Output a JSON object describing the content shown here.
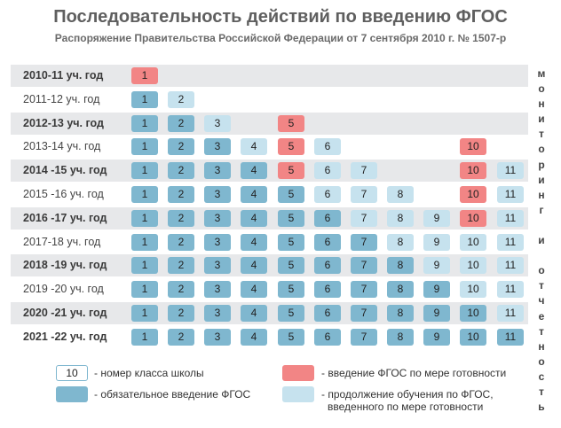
{
  "title": "Последовательность действий по введению ФГОС",
  "subtitle": "Распоряжение Правительства Российской Федерации от 7 сентября 2010 г. № 1507-р",
  "side_text": "мониторинг и отчетность",
  "colors": {
    "mandatory": "#7fb7cf",
    "introduction": "#f28585",
    "continuation": "#c6e2ee",
    "row_shade": "#e7e8ea"
  },
  "rows": [
    {
      "label": "2010-11 уч. год",
      "shaded": true,
      "bold": true,
      "cells": [
        {
          "n": "1",
          "t": "i"
        }
      ]
    },
    {
      "label": "2011-12 уч. год",
      "shaded": false,
      "bold": false,
      "cells": [
        {
          "n": "1",
          "t": "m"
        },
        {
          "n": "2",
          "t": "c"
        }
      ]
    },
    {
      "label": "2012-13 уч. год",
      "shaded": true,
      "bold": true,
      "cells": [
        {
          "n": "1",
          "t": "m"
        },
        {
          "n": "2",
          "t": "m"
        },
        {
          "n": "3",
          "t": "c"
        },
        {
          "n": "5",
          "t": "i"
        }
      ]
    },
    {
      "label": "2013-14 уч. год",
      "shaded": false,
      "bold": false,
      "cells": [
        {
          "n": "1",
          "t": "m"
        },
        {
          "n": "2",
          "t": "m"
        },
        {
          "n": "3",
          "t": "m"
        },
        {
          "n": "4",
          "t": "c"
        },
        {
          "n": "5",
          "t": "i"
        },
        {
          "n": "6",
          "t": "c"
        },
        {
          "n": "10",
          "t": "i"
        }
      ]
    },
    {
      "label": "2014 -15 уч. год",
      "shaded": true,
      "bold": true,
      "cells": [
        {
          "n": "1",
          "t": "m"
        },
        {
          "n": "2",
          "t": "m"
        },
        {
          "n": "3",
          "t": "m"
        },
        {
          "n": "4",
          "t": "m"
        },
        {
          "n": "5",
          "t": "i"
        },
        {
          "n": "6",
          "t": "c"
        },
        {
          "n": "7",
          "t": "c"
        },
        {
          "n": "10",
          "t": "i"
        },
        {
          "n": "11",
          "t": "c"
        }
      ]
    },
    {
      "label": "2015 -16 уч. год",
      "shaded": false,
      "bold": false,
      "cells": [
        {
          "n": "1",
          "t": "m"
        },
        {
          "n": "2",
          "t": "m"
        },
        {
          "n": "3",
          "t": "m"
        },
        {
          "n": "4",
          "t": "m"
        },
        {
          "n": "5",
          "t": "m"
        },
        {
          "n": "6",
          "t": "c"
        },
        {
          "n": "7",
          "t": "c"
        },
        {
          "n": "8",
          "t": "c"
        },
        {
          "n": "10",
          "t": "i"
        },
        {
          "n": "11",
          "t": "c"
        }
      ]
    },
    {
      "label": "2016 -17 уч. год",
      "shaded": true,
      "bold": true,
      "cells": [
        {
          "n": "1",
          "t": "m"
        },
        {
          "n": "2",
          "t": "m"
        },
        {
          "n": "3",
          "t": "m"
        },
        {
          "n": "4",
          "t": "m"
        },
        {
          "n": "5",
          "t": "m"
        },
        {
          "n": "6",
          "t": "m"
        },
        {
          "n": "7",
          "t": "c"
        },
        {
          "n": "8",
          "t": "c"
        },
        {
          "n": "9",
          "t": "c"
        },
        {
          "n": "10",
          "t": "i"
        },
        {
          "n": "11",
          "t": "c"
        }
      ]
    },
    {
      "label": "2017-18 уч. год",
      "shaded": false,
      "bold": false,
      "cells": [
        {
          "n": "1",
          "t": "m"
        },
        {
          "n": "2",
          "t": "m"
        },
        {
          "n": "3",
          "t": "m"
        },
        {
          "n": "4",
          "t": "m"
        },
        {
          "n": "5",
          "t": "m"
        },
        {
          "n": "6",
          "t": "m"
        },
        {
          "n": "7",
          "t": "m"
        },
        {
          "n": "8",
          "t": "c"
        },
        {
          "n": "9",
          "t": "c"
        },
        {
          "n": "10",
          "t": "c"
        },
        {
          "n": "11",
          "t": "c"
        }
      ]
    },
    {
      "label": "2018 -19 уч. год",
      "shaded": true,
      "bold": true,
      "cells": [
        {
          "n": "1",
          "t": "m"
        },
        {
          "n": "2",
          "t": "m"
        },
        {
          "n": "3",
          "t": "m"
        },
        {
          "n": "4",
          "t": "m"
        },
        {
          "n": "5",
          "t": "m"
        },
        {
          "n": "6",
          "t": "m"
        },
        {
          "n": "7",
          "t": "m"
        },
        {
          "n": "8",
          "t": "m"
        },
        {
          "n": "9",
          "t": "c"
        },
        {
          "n": "10",
          "t": "c"
        },
        {
          "n": "11",
          "t": "c"
        }
      ]
    },
    {
      "label": "2019 -20 уч. год",
      "shaded": false,
      "bold": false,
      "cells": [
        {
          "n": "1",
          "t": "m"
        },
        {
          "n": "2",
          "t": "m"
        },
        {
          "n": "3",
          "t": "m"
        },
        {
          "n": "4",
          "t": "m"
        },
        {
          "n": "5",
          "t": "m"
        },
        {
          "n": "6",
          "t": "m"
        },
        {
          "n": "7",
          "t": "m"
        },
        {
          "n": "8",
          "t": "m"
        },
        {
          "n": "9",
          "t": "m"
        },
        {
          "n": "10",
          "t": "c"
        },
        {
          "n": "11",
          "t": "c"
        }
      ]
    },
    {
      "label": "2020 -21 уч. год",
      "shaded": true,
      "bold": true,
      "cells": [
        {
          "n": "1",
          "t": "m"
        },
        {
          "n": "2",
          "t": "m"
        },
        {
          "n": "3",
          "t": "m"
        },
        {
          "n": "4",
          "t": "m"
        },
        {
          "n": "5",
          "t": "m"
        },
        {
          "n": "6",
          "t": "m"
        },
        {
          "n": "7",
          "t": "m"
        },
        {
          "n": "8",
          "t": "m"
        },
        {
          "n": "9",
          "t": "m"
        },
        {
          "n": "10",
          "t": "m"
        },
        {
          "n": "11",
          "t": "c"
        }
      ]
    },
    {
      "label": "2021 -22 уч. год",
      "shaded": false,
      "bold": true,
      "cells": [
        {
          "n": "1",
          "t": "m"
        },
        {
          "n": "2",
          "t": "m"
        },
        {
          "n": "3",
          "t": "m"
        },
        {
          "n": "4",
          "t": "m"
        },
        {
          "n": "5",
          "t": "m"
        },
        {
          "n": "6",
          "t": "m"
        },
        {
          "n": "7",
          "t": "m"
        },
        {
          "n": "8",
          "t": "m"
        },
        {
          "n": "9",
          "t": "m"
        },
        {
          "n": "10",
          "t": "m"
        },
        {
          "n": "11",
          "t": "m"
        }
      ]
    }
  ],
  "legend": {
    "number_sample": "10",
    "number_text": "- номер класса школы",
    "mandatory_text": "- обязательное введение ФГОС",
    "introduction_text": "- введение ФГОС по мере готовности",
    "continuation_text_line1": "- продолжение обучения по ФГОС,",
    "continuation_text_line2": "введенного по мере готовности"
  }
}
